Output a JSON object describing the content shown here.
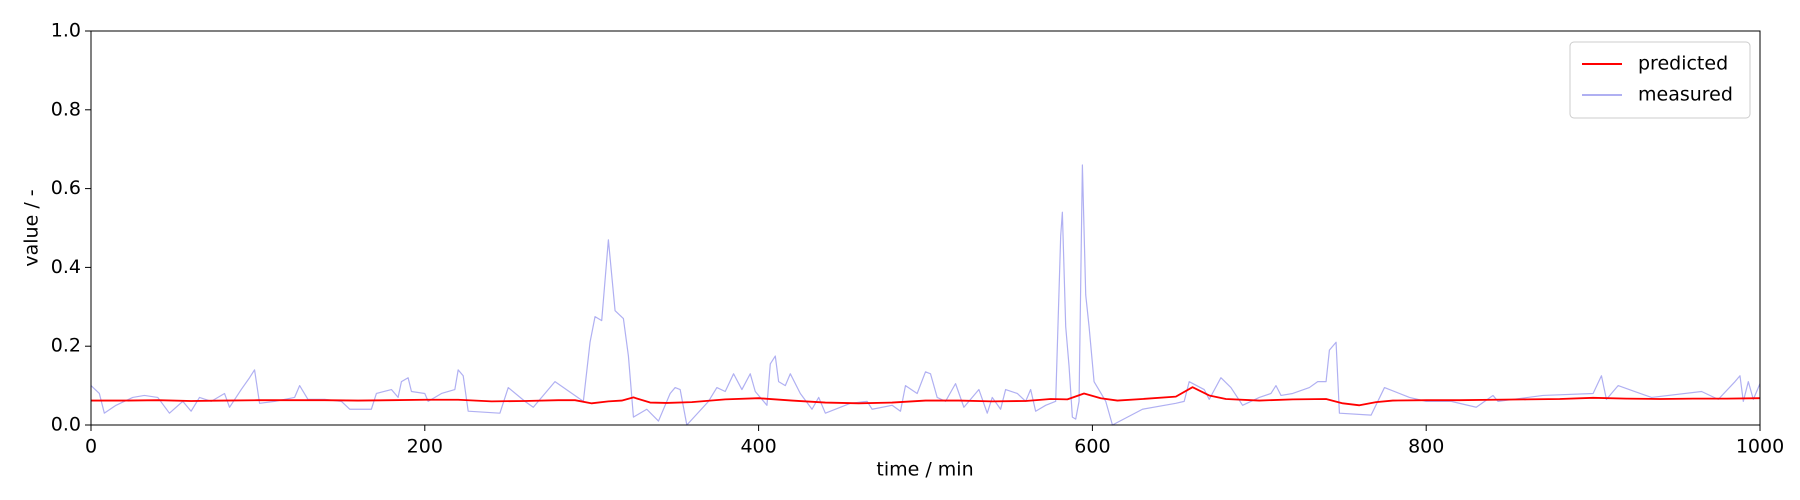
{
  "chart_data": {
    "type": "line",
    "xlabel": "time / min",
    "ylabel": "value / -",
    "xlim": [
      0,
      1000
    ],
    "ylim": [
      0,
      1
    ],
    "xticks": [
      0,
      200,
      400,
      600,
      800,
      1000
    ],
    "yticks": [
      {
        "value": 0,
        "label": "0.0"
      },
      0.2,
      0.4,
      0.6,
      0.8,
      {
        "value": 1,
        "label": "1.0"
      }
    ],
    "legend": "upper right",
    "series": [
      {
        "name": "predicted",
        "color": "#ff0000",
        "x": [
          0,
          20,
          40,
          60,
          80,
          100,
          120,
          140,
          160,
          180,
          200,
          220,
          240,
          260,
          280,
          290,
          300,
          310,
          318,
          325,
          335,
          345,
          360,
          380,
          400,
          420,
          440,
          460,
          480,
          500,
          520,
          540,
          560,
          575,
          585,
          595,
          605,
          615,
          630,
          650,
          660,
          670,
          680,
          700,
          720,
          740,
          750,
          760,
          770,
          780,
          800,
          820,
          840,
          860,
          880,
          900,
          920,
          940,
          960,
          980,
          1000
        ],
        "values": [
          0.062,
          0.062,
          0.063,
          0.061,
          0.062,
          0.063,
          0.063,
          0.063,
          0.062,
          0.063,
          0.064,
          0.064,
          0.06,
          0.061,
          0.063,
          0.063,
          0.055,
          0.06,
          0.062,
          0.07,
          0.057,
          0.056,
          0.058,
          0.065,
          0.068,
          0.062,
          0.057,
          0.055,
          0.057,
          0.062,
          0.062,
          0.06,
          0.061,
          0.066,
          0.065,
          0.08,
          0.068,
          0.062,
          0.066,
          0.072,
          0.096,
          0.075,
          0.066,
          0.062,
          0.065,
          0.066,
          0.055,
          0.05,
          0.058,
          0.062,
          0.063,
          0.063,
          0.064,
          0.065,
          0.066,
          0.069,
          0.067,
          0.066,
          0.067,
          0.067,
          0.068
        ]
      },
      {
        "name": "measured",
        "color": "#b0b0f2",
        "x": [
          0,
          5,
          8,
          15,
          25,
          32,
          40,
          47,
          55,
          60,
          65,
          72,
          80,
          83,
          90,
          95,
          98,
          101,
          110,
          122,
          125,
          130,
          140,
          150,
          155,
          168,
          171,
          180,
          184,
          186,
          190,
          192,
          200,
          202,
          210,
          218,
          220,
          223,
          226,
          245,
          250,
          260,
          265,
          278,
          295,
          299,
          302,
          306,
          310,
          314,
          319,
          322,
          325,
          333,
          340,
          347,
          350,
          353,
          357,
          370,
          375,
          380,
          385,
          390,
          395,
          398,
          405,
          407,
          410,
          412,
          416,
          419,
          425,
          432,
          436,
          440,
          455,
          465,
          468,
          480,
          485,
          488,
          495,
          500,
          503,
          507,
          512,
          518,
          523,
          532,
          537,
          540,
          545,
          548,
          555,
          560,
          563,
          566,
          572,
          578,
          581,
          582,
          584,
          586,
          588,
          590,
          592,
          594,
          596,
          598,
          601,
          608,
          612,
          630,
          650,
          655,
          658,
          667,
          670,
          677,
          683,
          690,
          700,
          707,
          710,
          713,
          720,
          730,
          735,
          740,
          742,
          746,
          748,
          767,
          775,
          790,
          800,
          815,
          830,
          840,
          843,
          870,
          900,
          905,
          908,
          915,
          925,
          935,
          965,
          975,
          985,
          988,
          990,
          993,
          996,
          1000
        ],
        "values": [
          0.1,
          0.08,
          0.03,
          0.05,
          0.07,
          0.075,
          0.07,
          0.03,
          0.06,
          0.035,
          0.07,
          0.06,
          0.08,
          0.045,
          0.09,
          0.12,
          0.14,
          0.055,
          0.06,
          0.07,
          0.1,
          0.065,
          0.065,
          0.06,
          0.04,
          0.04,
          0.08,
          0.09,
          0.07,
          0.11,
          0.12,
          0.085,
          0.08,
          0.06,
          0.08,
          0.09,
          0.14,
          0.125,
          0.035,
          0.03,
          0.095,
          0.06,
          0.045,
          0.11,
          0.06,
          0.21,
          0.275,
          0.265,
          0.47,
          0.29,
          0.27,
          0.175,
          0.02,
          0.04,
          0.01,
          0.08,
          0.095,
          0.09,
          0.0,
          0.06,
          0.095,
          0.085,
          0.13,
          0.09,
          0.13,
          0.085,
          0.05,
          0.155,
          0.175,
          0.11,
          0.1,
          0.13,
          0.08,
          0.04,
          0.07,
          0.03,
          0.055,
          0.06,
          0.04,
          0.05,
          0.035,
          0.1,
          0.08,
          0.135,
          0.13,
          0.07,
          0.06,
          0.105,
          0.045,
          0.09,
          0.03,
          0.07,
          0.04,
          0.09,
          0.08,
          0.06,
          0.09,
          0.035,
          0.05,
          0.06,
          0.48,
          0.54,
          0.25,
          0.15,
          0.02,
          0.015,
          0.06,
          0.66,
          0.33,
          0.25,
          0.11,
          0.06,
          0.0,
          0.04,
          0.055,
          0.06,
          0.11,
          0.09,
          0.065,
          0.12,
          0.095,
          0.05,
          0.07,
          0.08,
          0.1,
          0.075,
          0.08,
          0.095,
          0.11,
          0.11,
          0.19,
          0.21,
          0.03,
          0.025,
          0.095,
          0.07,
          0.06,
          0.06,
          0.045,
          0.075,
          0.06,
          0.075,
          0.08,
          0.125,
          0.065,
          0.1,
          0.085,
          0.07,
          0.085,
          0.065,
          0.11,
          0.125,
          0.06,
          0.11,
          0.065,
          0.105
        ]
      }
    ]
  }
}
